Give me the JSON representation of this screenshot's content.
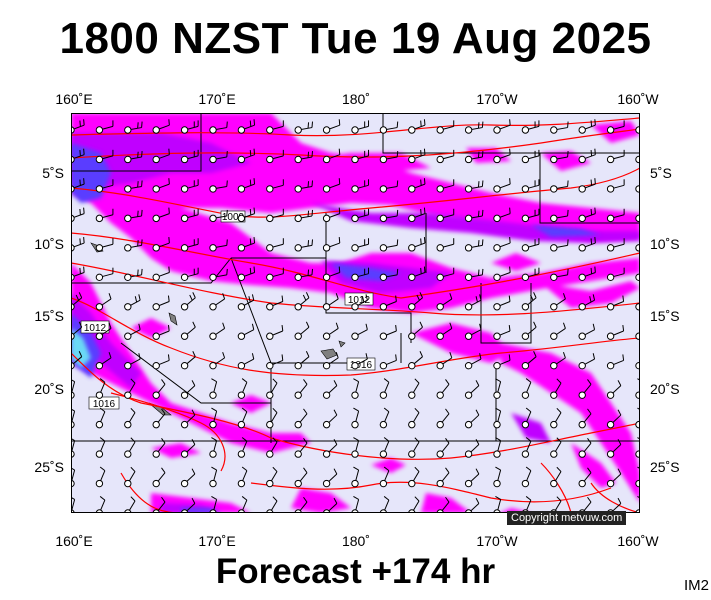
{
  "title": "1800 NZST Tue 19 Aug 2025",
  "footer": "Forecast +174 hr",
  "corner_code": "IM2",
  "copyright": "Copyright metvuw.com",
  "lon_labels": [
    "160˚E",
    "170˚E",
    "180˚",
    "170˚W",
    "160˚W"
  ],
  "lat_labels": [
    "5˚S",
    "10˚S",
    "15˚S",
    "20˚S",
    "25˚S"
  ],
  "isobar_labels": [
    "1009",
    "1012",
    "1012",
    "1016",
    "1016"
  ],
  "colors": {
    "ocean_background": "#e6e6fa",
    "rain_light": "#ff00ff",
    "rain_medium": "#c000ff",
    "rain_heavy": "#5a3cff",
    "rain_extreme": "#6ad9f5",
    "isobar": "#ff0000",
    "boundary": "#000000"
  },
  "icons": {
    "station": "open-circle-marker",
    "wind": "wind-barb"
  }
}
